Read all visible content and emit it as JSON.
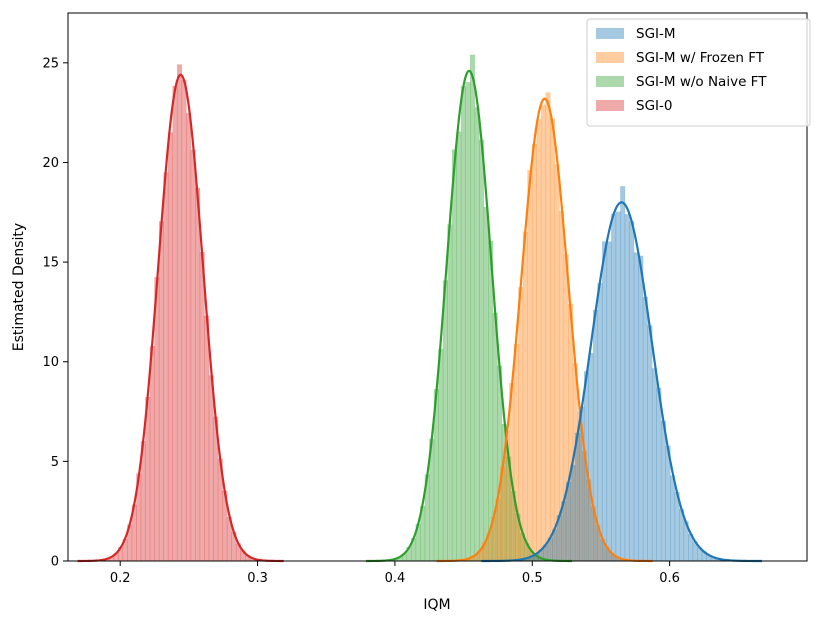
{
  "chart_data": {
    "type": "area",
    "title": "",
    "xlabel": "IQM",
    "ylabel": "Estimated Density",
    "xlim": [
      0.162,
      0.7
    ],
    "ylim": [
      0,
      27.5
    ],
    "xticks": [
      0.2,
      0.3,
      0.4,
      0.5,
      0.6
    ],
    "yticks": [
      0,
      5,
      10,
      15,
      20,
      25
    ],
    "grid": false,
    "legend_position": "top-right",
    "series": [
      {
        "name": "SGI-M",
        "color": "#1f77b4",
        "mean": 0.565,
        "std": 0.0222,
        "peak": 18.0
      },
      {
        "name": "SGI-M w/ Frozen FT",
        "color": "#ff7f0e",
        "mean": 0.509,
        "std": 0.0171,
        "peak": 23.2
      },
      {
        "name": "SGI-M w/o Naive FT",
        "color": "#2ca02c",
        "mean": 0.454,
        "std": 0.0163,
        "peak": 24.6
      },
      {
        "name": "SGI-0",
        "color": "#d62728",
        "mean": 0.244,
        "std": 0.0163,
        "peak": 24.4
      }
    ]
  }
}
